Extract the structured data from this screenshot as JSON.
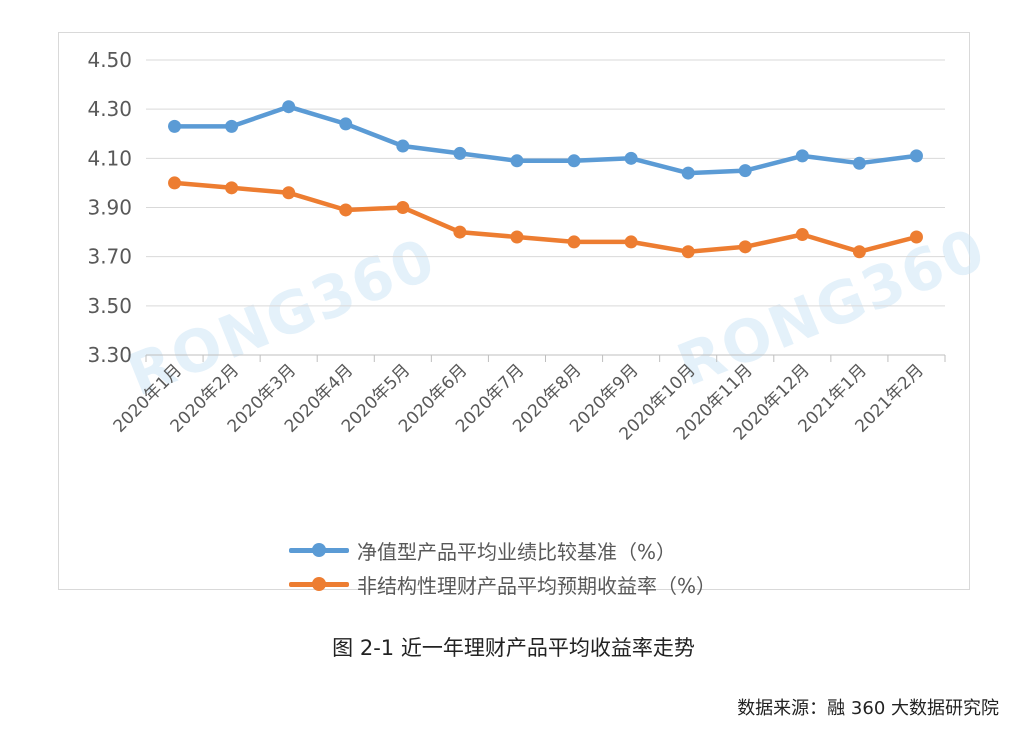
{
  "chart_data": {
    "type": "line",
    "categories": [
      "2020年1月",
      "2020年2月",
      "2020年3月",
      "2020年4月",
      "2020年5月",
      "2020年6月",
      "2020年7月",
      "2020年8月",
      "2020年9月",
      "2020年10月",
      "2020年11月",
      "2020年12月",
      "2021年1月",
      "2021年2月"
    ],
    "series": [
      {
        "name": "净值型产品平均业绩比较基准（%）",
        "color": "#5b9bd5",
        "values": [
          4.23,
          4.23,
          4.31,
          4.24,
          4.15,
          4.12,
          4.09,
          4.09,
          4.1,
          4.04,
          4.05,
          4.11,
          4.08,
          4.11
        ]
      },
      {
        "name": "非结构性理财产品平均预期收益率（%）",
        "color": "#ed7d31",
        "values": [
          4.0,
          3.98,
          3.96,
          3.89,
          3.9,
          3.8,
          3.78,
          3.76,
          3.76,
          3.72,
          3.74,
          3.79,
          3.72,
          3.78
        ]
      }
    ],
    "yticks": [
      "3.30",
      "3.50",
      "3.70",
      "3.90",
      "4.10",
      "4.30",
      "4.50"
    ],
    "ylim": [
      3.3,
      4.5
    ],
    "grid": true,
    "legend_position": "bottom",
    "watermark": "RONG360"
  },
  "caption": "图 2-1  近一年理财产品平均收益率走势",
  "source": "数据来源：融 360 大数据研究院"
}
